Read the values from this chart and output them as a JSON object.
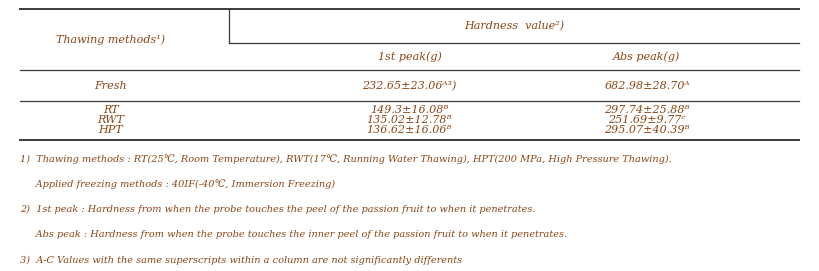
{
  "title": "Hardness  value²)",
  "col1_header": "Thawing methods¹)",
  "col2_header": "1st peak(g)",
  "col3_header": "Abs peak(g)",
  "rows": [
    {
      "method": "Fresh",
      "peak1": "232.65±23.06A3)",
      "peak2": "682.98±28.70A"
    },
    {
      "method": "RT",
      "peak1": "149.3±16.08B",
      "peak2": "297.74±25.88B"
    },
    {
      "method": "RWT",
      "peak1": "135.02±12.78B",
      "peak2": "251.69±9.77C"
    },
    {
      "method": "HPT",
      "peak1": "136.62±16.06B",
      "peak2": "295.07±40.39B"
    }
  ],
  "footnote1a": "1)  Thawing methods : RT(25℃, Room Temperature), RWT(17℃, Running Water Thawing), HPT(200 MPa, High Pressure Thawing).",
  "footnote1b": "     Applied freezing methods : 40IF(-40℃, Immersion Freezing)",
  "footnote2a": "2)  1st peak : Hardness from when the probe touches the peel of the passion fruit to when it penetrates.",
  "footnote2b": "     Abs peak : Hardness from when the probe touches the inner peel of the passion fruit to when it penetrates.",
  "footnote3": "3)  A-C Values with the same superscripts within a column are not significantly differents",
  "text_color": "#8B4513",
  "line_color": "#3a3a3a",
  "bg_color": "#ffffff",
  "font_size": 8.0,
  "footnote_font_size": 7.0
}
